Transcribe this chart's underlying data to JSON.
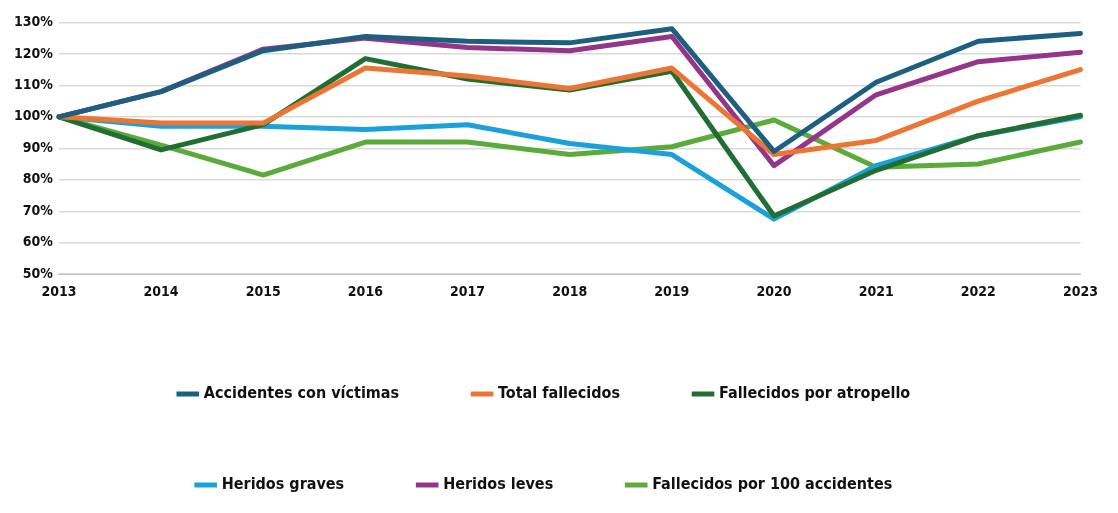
{
  "chart_data": {
    "type": "line",
    "categories": [
      "2013",
      "2014",
      "2015",
      "2016",
      "2017",
      "2018",
      "2019",
      "2020",
      "2021",
      "2022",
      "2023"
    ],
    "series": [
      {
        "name": "Accidentes con víctimas",
        "color": "#1d5f80",
        "values": [
          100,
          108,
          121,
          125.5,
          124,
          123.5,
          128,
          89,
          111,
          124,
          126.5
        ]
      },
      {
        "name": "Total fallecidos",
        "color": "#ec7533",
        "values": [
          100,
          98,
          98,
          115.5,
          113,
          109,
          115.5,
          88,
          92.5,
          105,
          115
        ]
      },
      {
        "name": "Fallecidos por atropello",
        "color": "#226d33",
        "values": [
          100,
          89.5,
          97.5,
          118.5,
          112,
          108.5,
          114.5,
          68.5,
          83,
          94,
          100.5
        ]
      },
      {
        "name": "Heridos graves",
        "color": "#1aa1dc",
        "values": [
          100,
          97,
          97,
          96,
          97.5,
          91.5,
          88,
          67.5,
          84.5,
          94,
          100
        ]
      },
      {
        "name": "Heridos leves",
        "color": "#943589",
        "values": [
          100,
          108,
          121.5,
          125,
          122,
          121,
          125.5,
          84.5,
          107,
          117.5,
          120.5
        ]
      },
      {
        "name": "Fallecidos por 100 accidentes",
        "color": "#5aab3a",
        "values": [
          100,
          91,
          81.5,
          92,
          92,
          88,
          90.5,
          99,
          84,
          85,
          92
        ]
      }
    ],
    "ylim": [
      50,
      130
    ],
    "yticks": [
      {
        "value": 50,
        "label": "50%"
      },
      {
        "value": 60,
        "label": "60%"
      },
      {
        "value": 70,
        "label": "70%"
      },
      {
        "value": 80,
        "label": "80%"
      },
      {
        "value": 90,
        "label": "90%"
      },
      {
        "value": 100,
        "label": "100%"
      },
      {
        "value": 110,
        "label": "110%"
      },
      {
        "value": 120,
        "label": "120%"
      },
      {
        "value": 130,
        "label": "130%"
      }
    ],
    "grid": "y",
    "legend": "bottom",
    "marker": "none",
    "line_style": "solid"
  }
}
